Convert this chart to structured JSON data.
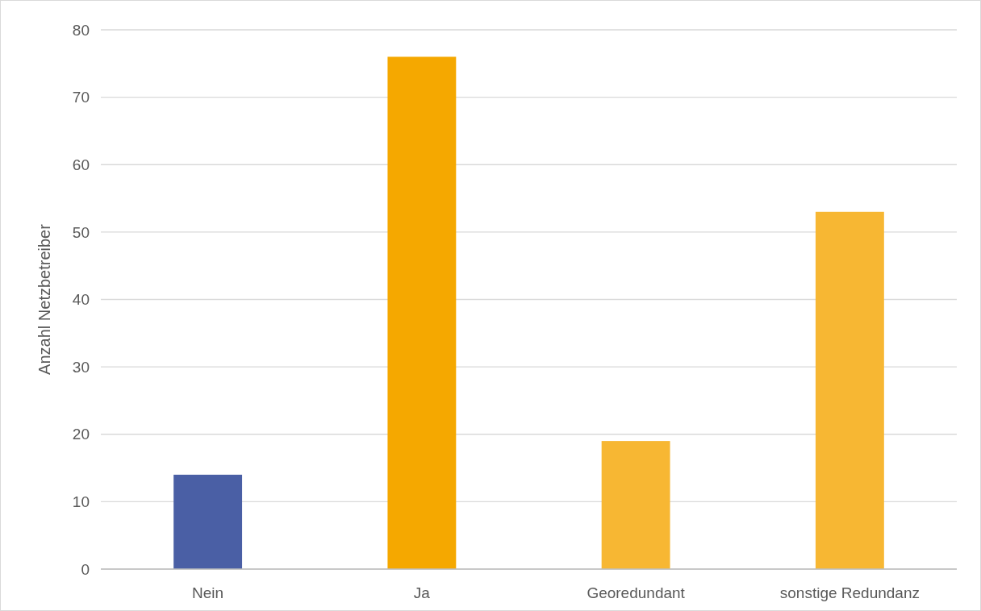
{
  "chart_data": {
    "type": "bar",
    "ylabel": "Anzahl Netzbetreiber",
    "categories": [
      "Nein",
      "Ja",
      "Georedundant",
      "sonstige Redundanz"
    ],
    "values": [
      14,
      76,
      19,
      53
    ],
    "colors": [
      "#4a5fa5",
      "#f5a800",
      "#f7b733",
      "#f7b733"
    ],
    "ylim": [
      0,
      80
    ],
    "yticks": [
      0,
      10,
      20,
      30,
      40,
      50,
      60,
      70,
      80
    ],
    "grid": "y"
  }
}
